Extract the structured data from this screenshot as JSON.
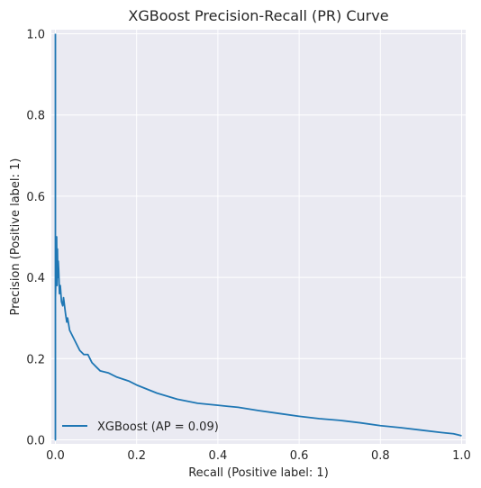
{
  "chart_data": {
    "type": "line",
    "title": "XGBoost Precision-Recall (PR) Curve",
    "xlabel": "Recall (Positive label: 1)",
    "ylabel": "Precision (Positive label: 1)",
    "xlim": [
      -0.01,
      1.01
    ],
    "ylim": [
      -0.01,
      1.01
    ],
    "xticks": [
      "0.0",
      "0.2",
      "0.4",
      "0.6",
      "0.8",
      "1.0"
    ],
    "yticks": [
      "0.0",
      "0.2",
      "0.4",
      "0.6",
      "0.8",
      "1.0"
    ],
    "grid": true,
    "legend_position": "lower-left",
    "colors": {
      "line": "#1f77b4",
      "background": "#eaeaf2",
      "grid": "#ffffff"
    },
    "series": [
      {
        "name": "XGBoost (AP = 0.09)",
        "x": [
          0.0,
          0.0,
          0.0,
          0.002,
          0.003,
          0.004,
          0.005,
          0.006,
          0.007,
          0.008,
          0.01,
          0.012,
          0.015,
          0.018,
          0.02,
          0.025,
          0.028,
          0.03,
          0.035,
          0.04,
          0.045,
          0.05,
          0.06,
          0.07,
          0.08,
          0.09,
          0.1,
          0.11,
          0.13,
          0.15,
          0.18,
          0.2,
          0.25,
          0.3,
          0.35,
          0.4,
          0.45,
          0.5,
          0.55,
          0.6,
          0.65,
          0.7,
          0.75,
          0.8,
          0.85,
          0.9,
          0.95,
          0.98,
          1.0
        ],
        "y": [
          1.0,
          0.0,
          0.35,
          0.43,
          0.5,
          0.38,
          0.47,
          0.4,
          0.44,
          0.42,
          0.36,
          0.38,
          0.34,
          0.33,
          0.35,
          0.31,
          0.29,
          0.3,
          0.27,
          0.26,
          0.25,
          0.24,
          0.22,
          0.21,
          0.21,
          0.19,
          0.18,
          0.17,
          0.165,
          0.155,
          0.145,
          0.135,
          0.115,
          0.1,
          0.09,
          0.085,
          0.08,
          0.072,
          0.065,
          0.058,
          0.052,
          0.048,
          0.042,
          0.035,
          0.03,
          0.024,
          0.018,
          0.015,
          0.01
        ]
      }
    ]
  }
}
